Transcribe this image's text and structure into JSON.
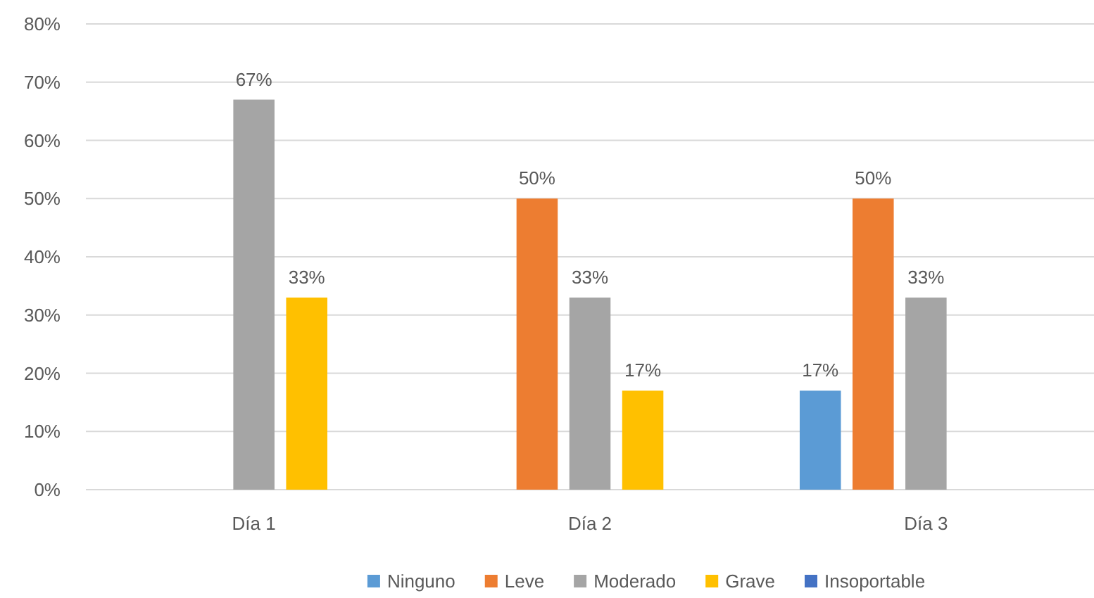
{
  "chart_data": {
    "type": "bar",
    "categories": [
      "Día 1",
      "Día 2",
      "Día 3"
    ],
    "series": [
      {
        "name": "Ninguno",
        "color": "#5b9bd5",
        "values": [
          null,
          null,
          17
        ],
        "value_labels": [
          null,
          null,
          "17%"
        ]
      },
      {
        "name": "Leve",
        "color": "#ed7d31",
        "values": [
          null,
          50,
          50
        ],
        "value_labels": [
          null,
          "50%",
          "50%"
        ]
      },
      {
        "name": "Moderado",
        "color": "#a5a5a5",
        "values": [
          67,
          33,
          33
        ],
        "value_labels": [
          "67%",
          "33%",
          "33%"
        ]
      },
      {
        "name": "Grave",
        "color": "#ffc000",
        "values": [
          33,
          17,
          null
        ],
        "value_labels": [
          "33%",
          "17%",
          null
        ]
      },
      {
        "name": "Insoportable",
        "color": "#4472c4",
        "values": [
          null,
          null,
          null
        ]
      }
    ],
    "ylim": [
      0,
      80
    ],
    "yticks": [
      {
        "value": 0,
        "label": "0%"
      },
      {
        "value": 10,
        "label": "10%"
      },
      {
        "value": 20,
        "label": "20%"
      },
      {
        "value": 30,
        "label": "30%"
      },
      {
        "value": 40,
        "label": "40%"
      },
      {
        "value": 50,
        "label": "50%"
      },
      {
        "value": 60,
        "label": "60%"
      },
      {
        "value": 70,
        "label": "70%"
      },
      {
        "value": 80,
        "label": "80%"
      }
    ],
    "grid": "y",
    "legend": "bottom"
  }
}
